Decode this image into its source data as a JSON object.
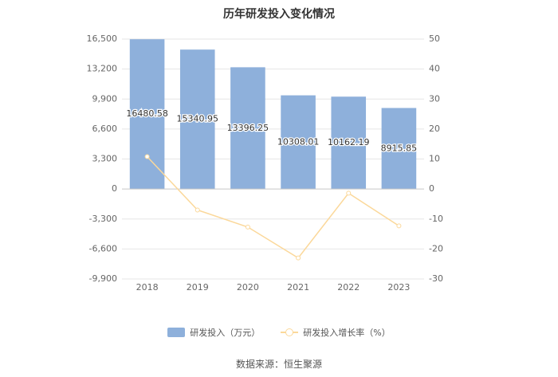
{
  "title": "历年研发投入变化情况",
  "source": "数据来源：恒生聚源",
  "legend": {
    "bar_label": "研发投入（万元）",
    "line_label": "研发投入增长率（%）"
  },
  "colors": {
    "bar": "#8eb0db",
    "line": "#fbd89a",
    "axis_text": "#666666",
    "grid": "#e6e6e6"
  },
  "chart_data": {
    "type": "bar",
    "categories": [
      "2018",
      "2019",
      "2020",
      "2021",
      "2022",
      "2023"
    ],
    "series": [
      {
        "name": "研发投入（万元）",
        "type": "bar",
        "axis": "left",
        "values": [
          16480.58,
          15340.95,
          13396.25,
          10308.01,
          10162.19,
          8915.85
        ],
        "labels": [
          "16480.58",
          "15340.95",
          "13396.25",
          "10308.01",
          "10162.19",
          "8915.85"
        ]
      },
      {
        "name": "研发投入增长率（%）",
        "type": "line",
        "axis": "right",
        "values": [
          10.8,
          -7.0,
          -12.7,
          -23.0,
          -1.4,
          -12.3
        ]
      }
    ],
    "y_left": {
      "ticks": [
        16500,
        13200,
        9900,
        6600,
        3300,
        0,
        -3300,
        -6600,
        -9900
      ],
      "tick_labels": [
        "16,500",
        "13,200",
        "9,900",
        "6,600",
        "3,300",
        "0",
        "-3,300",
        "-6,600",
        "-9,900"
      ],
      "range": [
        -9900,
        16500
      ]
    },
    "y_right": {
      "ticks": [
        50,
        40,
        30,
        20,
        10,
        0,
        -10,
        -20,
        -30
      ],
      "tick_labels": [
        "50",
        "40",
        "30",
        "20",
        "10",
        "0",
        "-10",
        "-20",
        "-30"
      ],
      "range": [
        -30,
        50
      ]
    },
    "grid": true,
    "legend_position": "bottom"
  }
}
